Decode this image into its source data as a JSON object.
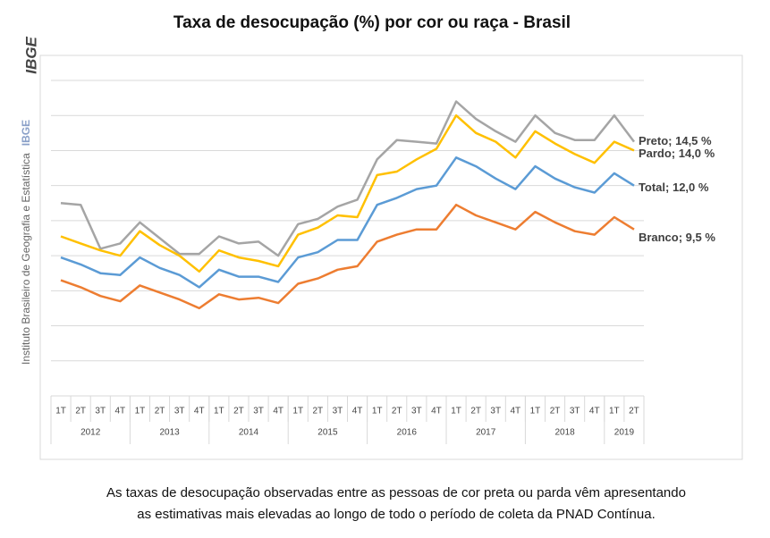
{
  "sidebar": {
    "logo": "IBGE",
    "institution": "Instituto Brasileiro de Geografia e Estatística",
    "acronym": "IBGE"
  },
  "chart_data": {
    "type": "line",
    "title": "Taxa de desocupação (%) por cor ou raça - Brasil",
    "year_groups": [
      {
        "year": "2012",
        "quarters": [
          "1T",
          "2T",
          "3T",
          "4T"
        ]
      },
      {
        "year": "2013",
        "quarters": [
          "1T",
          "2T",
          "3T",
          "4T"
        ]
      },
      {
        "year": "2014",
        "quarters": [
          "1T",
          "2T",
          "3T",
          "4T"
        ]
      },
      {
        "year": "2015",
        "quarters": [
          "1T",
          "2T",
          "3T",
          "4T"
        ]
      },
      {
        "year": "2016",
        "quarters": [
          "1T",
          "2T",
          "3T",
          "4T"
        ]
      },
      {
        "year": "2017",
        "quarters": [
          "1T",
          "2T",
          "3T",
          "4T"
        ]
      },
      {
        "year": "2018",
        "quarters": [
          "1T",
          "2T",
          "3T",
          "4T"
        ]
      },
      {
        "year": "2019",
        "quarters": [
          "1T",
          "2T"
        ]
      }
    ],
    "ylim": [
      0,
      18
    ],
    "yticks": [
      0,
      2,
      4,
      6,
      8,
      10,
      12,
      14,
      16,
      18
    ],
    "grid": true,
    "y_tick_labels": false,
    "series": [
      {
        "name": "Preto",
        "color": "#a5a5a5",
        "values": [
          11.0,
          10.9,
          8.4,
          8.7,
          9.9,
          9.0,
          8.1,
          8.1,
          9.1,
          8.7,
          8.8,
          8.0,
          9.8,
          10.1,
          10.8,
          11.2,
          13.5,
          14.6,
          14.5,
          14.4,
          16.8,
          15.8,
          15.1,
          14.5,
          16.0,
          15.0,
          14.6,
          14.6,
          16.0,
          14.5
        ],
        "value_labels": [
          null,
          null,
          null,
          null,
          null,
          null,
          null,
          null,
          null,
          null,
          null,
          null,
          null,
          null,
          null,
          null,
          null,
          null,
          null,
          null,
          null,
          null,
          null,
          null,
          null,
          null,
          null,
          null,
          null,
          "Preto; 14,5 %"
        ]
      },
      {
        "name": "Pardo",
        "color": "#ffc000",
        "values": [
          9.1,
          8.7,
          8.3,
          8.0,
          9.4,
          8.6,
          8.0,
          7.1,
          8.3,
          7.9,
          7.7,
          7.4,
          9.2,
          9.6,
          10.3,
          10.2,
          12.6,
          12.8,
          13.5,
          14.1,
          16.0,
          15.0,
          14.5,
          13.6,
          15.1,
          14.4,
          13.8,
          13.3,
          14.5,
          14.0
        ],
        "value_labels": [
          null,
          null,
          null,
          null,
          null,
          null,
          null,
          null,
          null,
          null,
          null,
          null,
          null,
          null,
          null,
          null,
          null,
          null,
          null,
          null,
          null,
          null,
          null,
          null,
          null,
          null,
          null,
          null,
          null,
          "Pardo; 14,0 %"
        ]
      },
      {
        "name": "Total",
        "color": "#5b9bd5",
        "values": [
          7.9,
          7.5,
          7.0,
          6.9,
          7.9,
          7.3,
          6.9,
          6.2,
          7.2,
          6.8,
          6.8,
          6.5,
          7.9,
          8.2,
          8.9,
          8.9,
          10.9,
          11.3,
          11.8,
          12.0,
          13.6,
          13.1,
          12.4,
          11.8,
          13.1,
          12.4,
          11.9,
          11.6,
          12.7,
          12.0
        ],
        "value_labels": [
          null,
          null,
          null,
          null,
          null,
          null,
          null,
          null,
          null,
          null,
          null,
          null,
          null,
          null,
          null,
          null,
          null,
          null,
          null,
          null,
          null,
          null,
          null,
          null,
          null,
          null,
          null,
          null,
          null,
          "Total; 12,0 %"
        ]
      },
      {
        "name": "Branco",
        "color": "#ed7d31",
        "values": [
          6.6,
          6.2,
          5.7,
          5.4,
          6.3,
          5.9,
          5.5,
          5.0,
          5.8,
          5.5,
          5.6,
          5.3,
          6.4,
          6.7,
          7.2,
          7.4,
          8.8,
          9.2,
          9.5,
          9.5,
          10.9,
          10.3,
          9.9,
          9.5,
          10.5,
          9.9,
          9.4,
          9.2,
          10.2,
          9.5
        ],
        "value_labels": [
          null,
          null,
          null,
          null,
          null,
          null,
          null,
          null,
          null,
          null,
          null,
          null,
          null,
          null,
          null,
          null,
          null,
          null,
          null,
          null,
          null,
          null,
          null,
          null,
          null,
          null,
          null,
          null,
          null,
          "Branco; 9,5 %"
        ]
      }
    ]
  },
  "caption": [
    "As taxas de desocupação observadas entre as pessoas de cor preta ou parda vêm apresentando",
    "as estimativas mais elevadas ao longo de todo o período de coleta da PNAD Contínua."
  ]
}
